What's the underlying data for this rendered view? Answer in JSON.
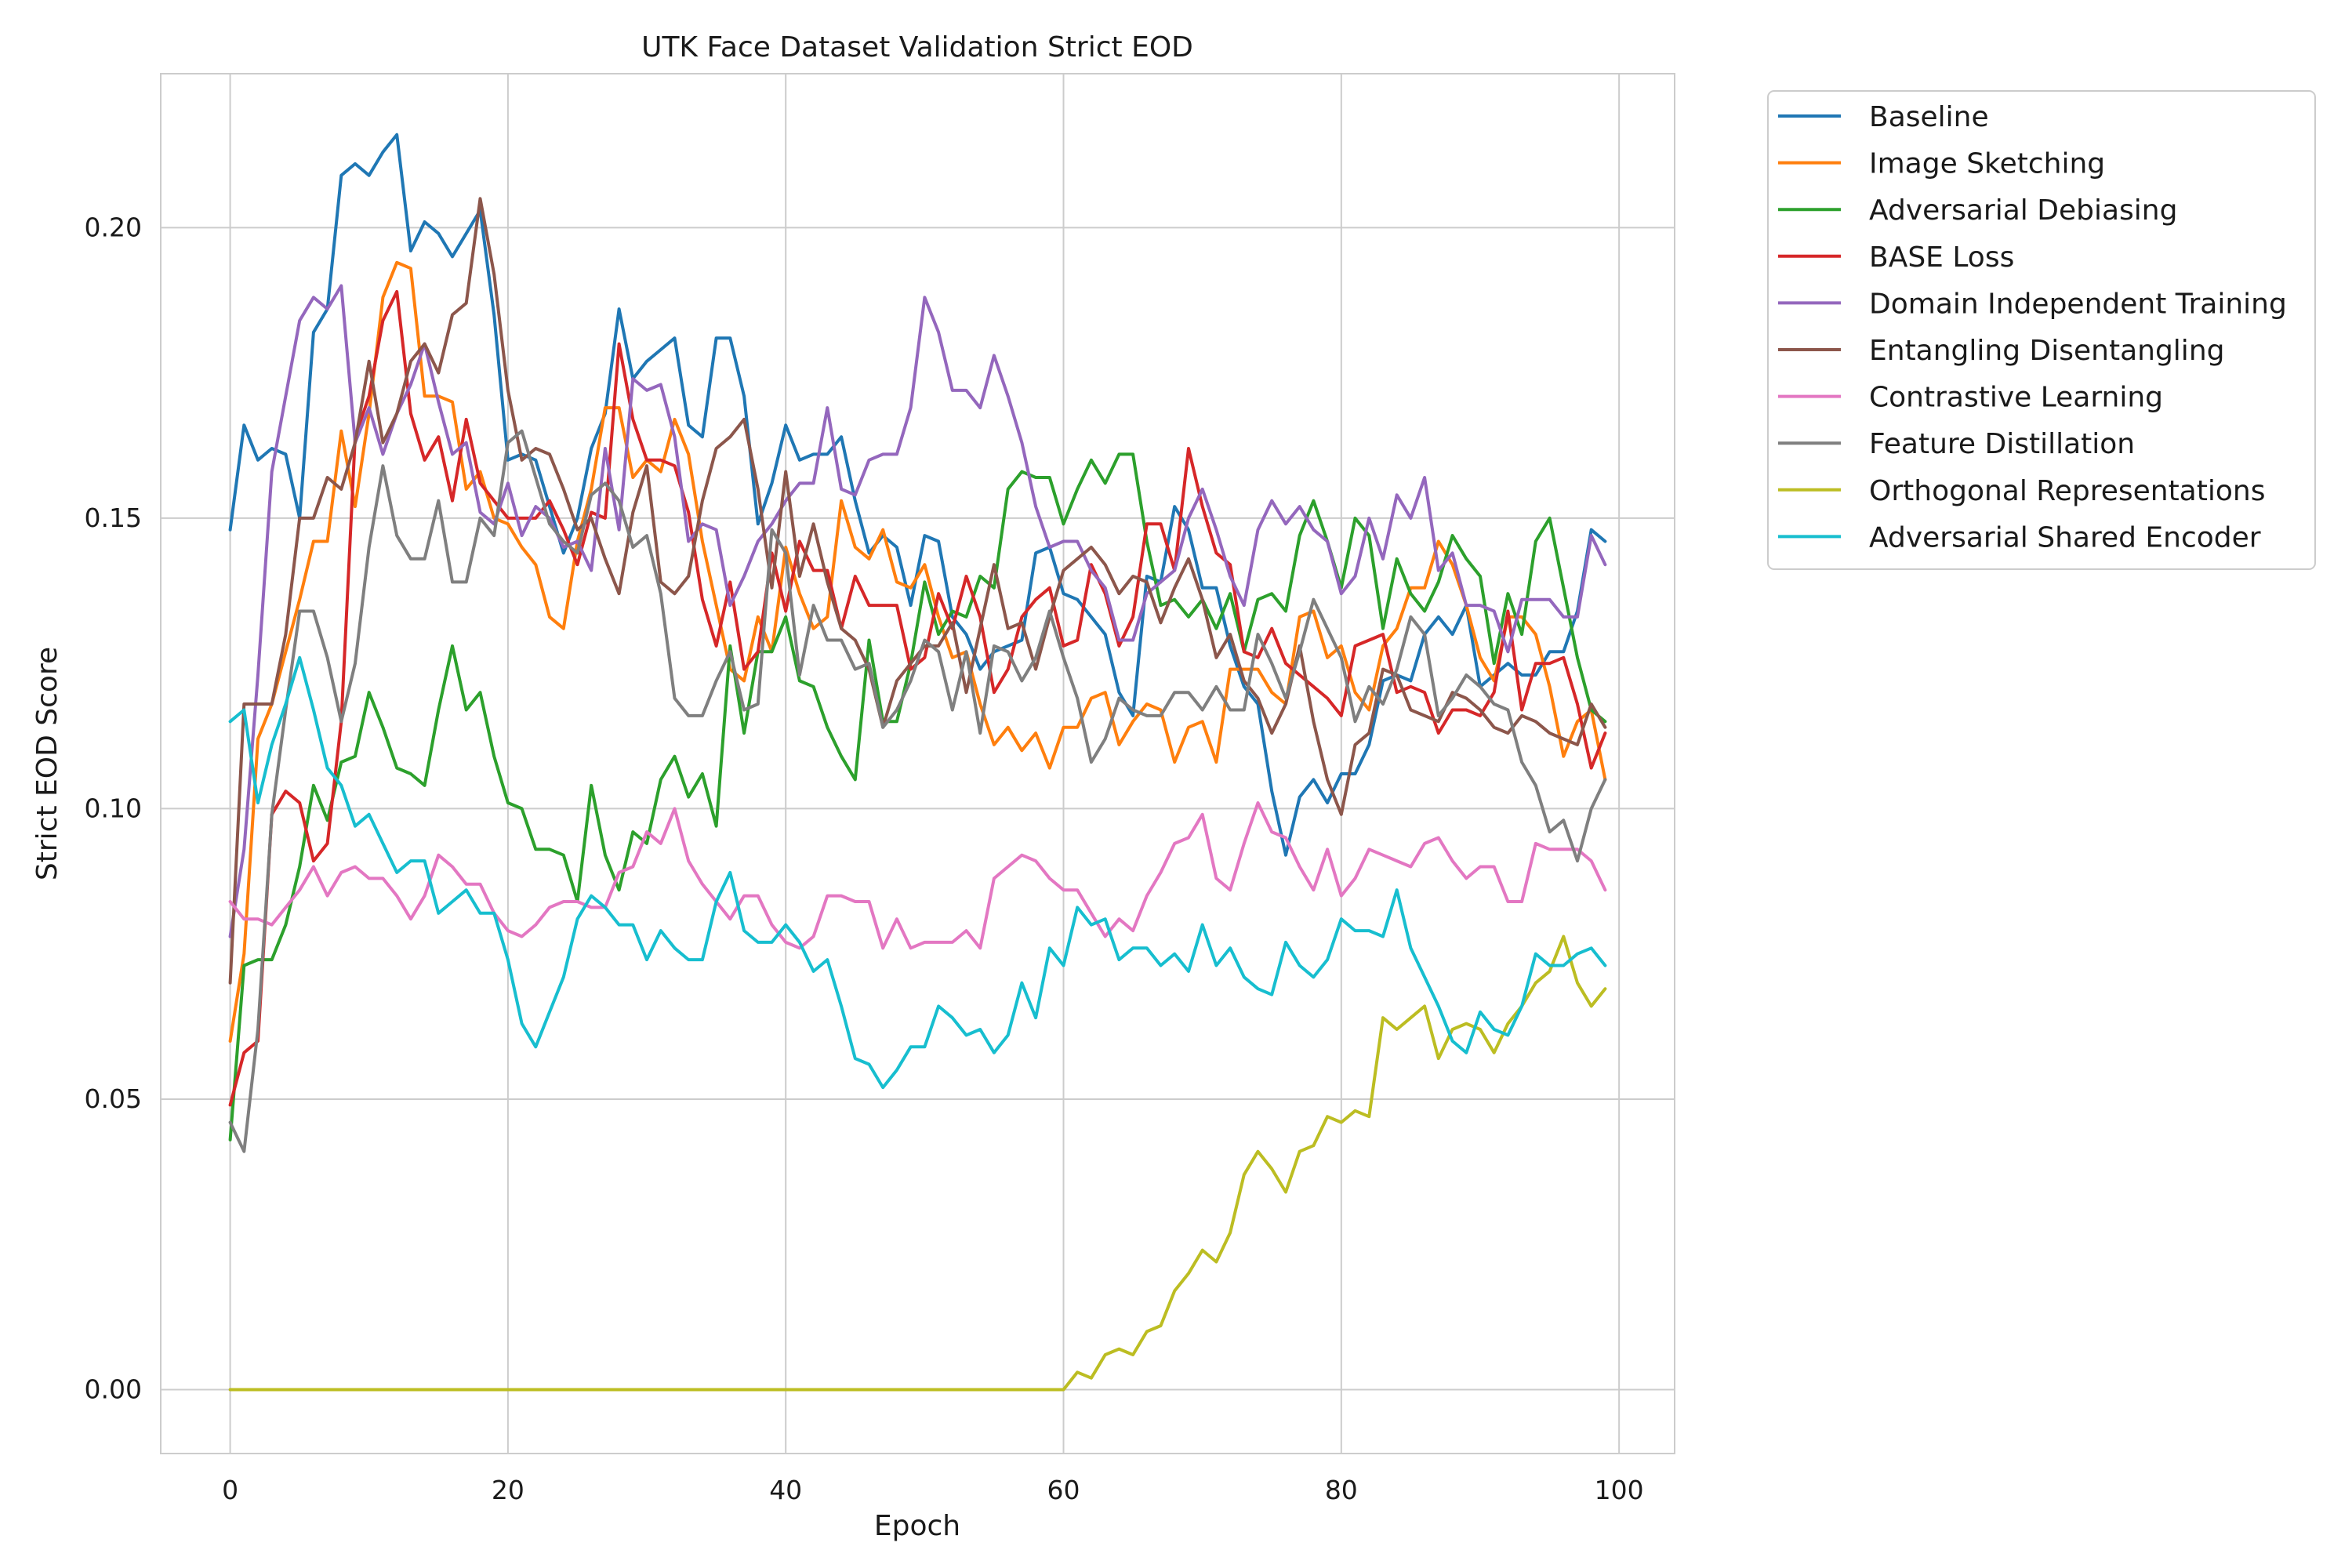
{
  "chart_data": {
    "type": "line",
    "title": "UTK Face Dataset Validation Strict EOD",
    "xlabel": "Epoch",
    "ylabel": "Strict EOD Score",
    "xlim": [
      -5,
      104
    ],
    "ylim": [
      -0.011,
      0.2265
    ],
    "xticks": [
      0,
      20,
      40,
      60,
      80,
      100
    ],
    "yticks": [
      0.0,
      0.05,
      0.1,
      0.15,
      0.2
    ],
    "ytick_labels": [
      "0.00",
      "0.05",
      "0.10",
      "0.15",
      "0.20"
    ],
    "grid": true,
    "legend_position": "outside-top-right",
    "x_start": 0,
    "series": [
      {
        "name": "Baseline",
        "color": "#1f77b4",
        "values": [
          0.148,
          0.166,
          0.16,
          0.162,
          0.161,
          0.15,
          0.182,
          0.186,
          0.209,
          0.211,
          0.209,
          0.213,
          0.216,
          0.196,
          0.201,
          0.199,
          0.195,
          0.199,
          0.203,
          0.185,
          0.16,
          0.161,
          0.16,
          0.152,
          0.144,
          0.15,
          0.162,
          0.168,
          0.186,
          0.174,
          0.177,
          0.179,
          0.181,
          0.166,
          0.164,
          0.181,
          0.181,
          0.171,
          0.149,
          0.156,
          0.166,
          0.16,
          0.161,
          0.161,
          0.164,
          0.153,
          0.144,
          0.147,
          0.145,
          0.135,
          0.147,
          0.146,
          0.133,
          0.13,
          0.124,
          0.127,
          0.128,
          0.129,
          0.144,
          0.145,
          0.137,
          0.136,
          0.133,
          0.13,
          0.12,
          0.116,
          0.14,
          0.139,
          0.152,
          0.148,
          0.138,
          0.138,
          0.128,
          0.121,
          0.118,
          0.103,
          0.092,
          0.102,
          0.105,
          0.101,
          0.106,
          0.106,
          0.111,
          0.122,
          0.123,
          0.122,
          0.13,
          0.133,
          0.13,
          0.135,
          0.121,
          0.123,
          0.125,
          0.123,
          0.123,
          0.127,
          0.127,
          0.134,
          0.148,
          0.146
        ]
      },
      {
        "name": "Image Sketching",
        "color": "#ff7f0e",
        "values": [
          0.06,
          0.075,
          0.112,
          0.118,
          0.127,
          0.136,
          0.146,
          0.146,
          0.165,
          0.152,
          0.168,
          0.188,
          0.194,
          0.193,
          0.171,
          0.171,
          0.17,
          0.155,
          0.158,
          0.15,
          0.149,
          0.145,
          0.142,
          0.133,
          0.131,
          0.146,
          0.155,
          0.169,
          0.169,
          0.157,
          0.16,
          0.158,
          0.167,
          0.161,
          0.146,
          0.135,
          0.124,
          0.122,
          0.133,
          0.127,
          0.145,
          0.137,
          0.131,
          0.133,
          0.153,
          0.145,
          0.143,
          0.148,
          0.139,
          0.138,
          0.142,
          0.133,
          0.126,
          0.127,
          0.118,
          0.111,
          0.114,
          0.11,
          0.113,
          0.107,
          0.114,
          0.114,
          0.119,
          0.12,
          0.111,
          0.115,
          0.118,
          0.117,
          0.108,
          0.114,
          0.115,
          0.108,
          0.124,
          0.124,
          0.124,
          0.12,
          0.118,
          0.133,
          0.134,
          0.126,
          0.128,
          0.12,
          0.117,
          0.128,
          0.131,
          0.138,
          0.138,
          0.146,
          0.142,
          0.135,
          0.126,
          0.122,
          0.133,
          0.133,
          0.13,
          0.121,
          0.109,
          0.115,
          0.117,
          0.105
        ]
      },
      {
        "name": "Adversarial Debiasing",
        "color": "#2ca02c",
        "values": [
          0.043,
          0.073,
          0.074,
          0.074,
          0.08,
          0.09,
          0.104,
          0.098,
          0.108,
          0.109,
          0.12,
          0.114,
          0.107,
          0.106,
          0.104,
          0.117,
          0.128,
          0.117,
          0.12,
          0.109,
          0.101,
          0.1,
          0.093,
          0.093,
          0.092,
          0.084,
          0.104,
          0.092,
          0.086,
          0.096,
          0.094,
          0.105,
          0.109,
          0.102,
          0.106,
          0.097,
          0.128,
          0.113,
          0.127,
          0.127,
          0.133,
          0.122,
          0.121,
          0.114,
          0.109,
          0.105,
          0.129,
          0.115,
          0.115,
          0.125,
          0.139,
          0.13,
          0.134,
          0.133,
          0.14,
          0.138,
          0.155,
          0.158,
          0.157,
          0.157,
          0.149,
          0.155,
          0.16,
          0.156,
          0.161,
          0.161,
          0.146,
          0.135,
          0.136,
          0.133,
          0.136,
          0.131,
          0.137,
          0.127,
          0.136,
          0.137,
          0.134,
          0.147,
          0.153,
          0.146,
          0.138,
          0.15,
          0.147,
          0.131,
          0.143,
          0.137,
          0.134,
          0.139,
          0.147,
          0.143,
          0.14,
          0.125,
          0.137,
          0.13,
          0.146,
          0.15,
          0.138,
          0.126,
          0.117,
          0.115
        ]
      },
      {
        "name": "BASE Loss",
        "color": "#d62728",
        "values": [
          0.049,
          0.058,
          0.06,
          0.099,
          0.103,
          0.101,
          0.091,
          0.094,
          0.115,
          0.164,
          0.171,
          0.184,
          0.189,
          0.168,
          0.16,
          0.164,
          0.153,
          0.167,
          0.156,
          0.153,
          0.15,
          0.15,
          0.15,
          0.153,
          0.148,
          0.142,
          0.151,
          0.15,
          0.18,
          0.167,
          0.16,
          0.16,
          0.159,
          0.151,
          0.136,
          0.128,
          0.139,
          0.124,
          0.127,
          0.144,
          0.134,
          0.146,
          0.141,
          0.141,
          0.131,
          0.14,
          0.135,
          0.135,
          0.135,
          0.124,
          0.126,
          0.137,
          0.131,
          0.14,
          0.133,
          0.12,
          0.124,
          0.133,
          0.136,
          0.138,
          0.128,
          0.129,
          0.142,
          0.137,
          0.128,
          0.133,
          0.149,
          0.149,
          0.141,
          0.162,
          0.152,
          0.144,
          0.142,
          0.127,
          0.126,
          0.131,
          0.125,
          0.123,
          0.121,
          0.119,
          0.116,
          0.128,
          0.129,
          0.13,
          0.12,
          0.121,
          0.12,
          0.113,
          0.117,
          0.117,
          0.116,
          0.12,
          0.134,
          0.117,
          0.125,
          0.125,
          0.126,
          0.118,
          0.107,
          0.113
        ]
      },
      {
        "name": "Domain Independent Training",
        "color": "#9467bd",
        "values": [
          0.078,
          0.093,
          0.123,
          0.158,
          0.171,
          0.184,
          0.188,
          0.186,
          0.19,
          0.163,
          0.169,
          0.161,
          0.168,
          0.173,
          0.18,
          0.17,
          0.161,
          0.163,
          0.151,
          0.149,
          0.156,
          0.147,
          0.152,
          0.15,
          0.145,
          0.146,
          0.141,
          0.162,
          0.148,
          0.174,
          0.172,
          0.173,
          0.164,
          0.146,
          0.149,
          0.148,
          0.135,
          0.14,
          0.146,
          0.149,
          0.153,
          0.156,
          0.156,
          0.169,
          0.155,
          0.154,
          0.16,
          0.161,
          0.161,
          0.169,
          0.188,
          0.182,
          0.172,
          0.172,
          0.169,
          0.178,
          0.171,
          0.163,
          0.152,
          0.145,
          0.146,
          0.146,
          0.141,
          0.138,
          0.129,
          0.129,
          0.137,
          0.139,
          0.141,
          0.15,
          0.155,
          0.148,
          0.14,
          0.135,
          0.148,
          0.153,
          0.149,
          0.152,
          0.148,
          0.146,
          0.137,
          0.14,
          0.15,
          0.143,
          0.154,
          0.15,
          0.157,
          0.141,
          0.144,
          0.135,
          0.135,
          0.134,
          0.127,
          0.136,
          0.136,
          0.136,
          0.133,
          0.133,
          0.147,
          0.142
        ]
      },
      {
        "name": "Entangling Disentangling",
        "color": "#8c564b",
        "values": [
          0.07,
          0.118,
          0.118,
          0.118,
          0.13,
          0.15,
          0.15,
          0.157,
          0.155,
          0.163,
          0.177,
          0.163,
          0.168,
          0.177,
          0.18,
          0.175,
          0.185,
          0.187,
          0.205,
          0.192,
          0.172,
          0.16,
          0.162,
          0.161,
          0.155,
          0.148,
          0.15,
          0.143,
          0.137,
          0.151,
          0.159,
          0.139,
          0.137,
          0.14,
          0.153,
          0.162,
          0.164,
          0.167,
          0.155,
          0.138,
          0.158,
          0.14,
          0.149,
          0.139,
          0.131,
          0.129,
          0.124,
          0.114,
          0.122,
          0.125,
          0.128,
          0.128,
          0.132,
          0.12,
          0.131,
          0.142,
          0.131,
          0.132,
          0.124,
          0.133,
          0.141,
          0.143,
          0.145,
          0.142,
          0.137,
          0.14,
          0.139,
          0.132,
          0.138,
          0.143,
          0.136,
          0.126,
          0.13,
          0.122,
          0.119,
          0.113,
          0.118,
          0.128,
          0.115,
          0.105,
          0.099,
          0.111,
          0.113,
          0.124,
          0.123,
          0.117,
          0.116,
          0.115,
          0.12,
          0.119,
          0.117,
          0.114,
          0.113,
          0.116,
          0.115,
          0.113,
          0.112,
          0.111,
          0.118,
          0.114
        ]
      },
      {
        "name": "Contrastive Learning",
        "color": "#e377c2",
        "values": [
          0.084,
          0.081,
          0.081,
          0.08,
          0.083,
          0.086,
          0.09,
          0.085,
          0.089,
          0.09,
          0.088,
          0.088,
          0.085,
          0.081,
          0.085,
          0.092,
          0.09,
          0.087,
          0.087,
          0.082,
          0.079,
          0.078,
          0.08,
          0.083,
          0.084,
          0.084,
          0.083,
          0.083,
          0.089,
          0.09,
          0.096,
          0.094,
          0.1,
          0.091,
          0.087,
          0.084,
          0.081,
          0.085,
          0.085,
          0.08,
          0.077,
          0.076,
          0.078,
          0.085,
          0.085,
          0.084,
          0.084,
          0.076,
          0.081,
          0.076,
          0.077,
          0.077,
          0.077,
          0.079,
          0.076,
          0.088,
          0.09,
          0.092,
          0.091,
          0.088,
          0.086,
          0.086,
          0.082,
          0.078,
          0.081,
          0.079,
          0.085,
          0.089,
          0.094,
          0.095,
          0.099,
          0.088,
          0.086,
          0.094,
          0.101,
          0.096,
          0.095,
          0.09,
          0.086,
          0.093,
          0.085,
          0.088,
          0.093,
          0.092,
          0.091,
          0.09,
          0.094,
          0.095,
          0.091,
          0.088,
          0.09,
          0.09,
          0.084,
          0.084,
          0.094,
          0.093,
          0.093,
          0.093,
          0.091,
          0.086
        ]
      },
      {
        "name": "Feature Distillation",
        "color": "#7f7f7f",
        "values": [
          0.046,
          0.041,
          0.062,
          0.099,
          0.117,
          0.134,
          0.134,
          0.126,
          0.115,
          0.125,
          0.145,
          0.159,
          0.147,
          0.143,
          0.143,
          0.153,
          0.139,
          0.139,
          0.15,
          0.147,
          0.163,
          0.165,
          0.157,
          0.149,
          0.146,
          0.144,
          0.154,
          0.156,
          0.153,
          0.145,
          0.147,
          0.137,
          0.119,
          0.116,
          0.116,
          0.122,
          0.127,
          0.117,
          0.118,
          0.148,
          0.144,
          0.123,
          0.135,
          0.129,
          0.129,
          0.124,
          0.125,
          0.114,
          0.117,
          0.122,
          0.129,
          0.127,
          0.117,
          0.127,
          0.113,
          0.128,
          0.127,
          0.122,
          0.126,
          0.134,
          0.126,
          0.119,
          0.108,
          0.112,
          0.119,
          0.117,
          0.116,
          0.116,
          0.12,
          0.12,
          0.117,
          0.121,
          0.117,
          0.117,
          0.13,
          0.125,
          0.119,
          0.127,
          0.136,
          0.131,
          0.126,
          0.115,
          0.121,
          0.118,
          0.124,
          0.133,
          0.13,
          0.116,
          0.119,
          0.123,
          0.121,
          0.118,
          0.117,
          0.108,
          0.104,
          0.096,
          0.098,
          0.091,
          0.1,
          0.105
        ]
      },
      {
        "name": "Orthogonal Representations",
        "color": "#bcbd22",
        "values": [
          0,
          0,
          0,
          0,
          0,
          0,
          0,
          0,
          0,
          0,
          0,
          0,
          0,
          0,
          0,
          0,
          0,
          0,
          0,
          0,
          0,
          0,
          0,
          0,
          0,
          0,
          0,
          0,
          0,
          0,
          0,
          0,
          0,
          0,
          0,
          0,
          0,
          0,
          0,
          0,
          0,
          0,
          0,
          0,
          0,
          0,
          0,
          0,
          0,
          0,
          0,
          0,
          0,
          0,
          0,
          0,
          0,
          0,
          0,
          0,
          0,
          0.003,
          0.002,
          0.006,
          0.007,
          0.006,
          0.01,
          0.011,
          0.017,
          0.02,
          0.024,
          0.022,
          0.027,
          0.037,
          0.041,
          0.038,
          0.034,
          0.041,
          0.042,
          0.047,
          0.046,
          0.048,
          0.047,
          0.064,
          0.062,
          0.064,
          0.066,
          0.057,
          0.062,
          0.063,
          0.062,
          0.058,
          0.063,
          0.066,
          0.07,
          0.072,
          0.078,
          0.07,
          0.066,
          0.069
        ]
      },
      {
        "name": "Adversarial Shared Encoder",
        "color": "#17becf",
        "values": [
          0.115,
          0.117,
          0.101,
          0.111,
          0.118,
          0.126,
          0.117,
          0.107,
          0.104,
          0.097,
          0.099,
          0.094,
          0.089,
          0.091,
          0.091,
          0.082,
          0.084,
          0.086,
          0.082,
          0.082,
          0.074,
          0.063,
          0.059,
          0.065,
          0.071,
          0.081,
          0.085,
          0.083,
          0.08,
          0.08,
          0.074,
          0.079,
          0.076,
          0.074,
          0.074,
          0.084,
          0.089,
          0.079,
          0.077,
          0.077,
          0.08,
          0.077,
          0.072,
          0.074,
          0.066,
          0.057,
          0.056,
          0.052,
          0.055,
          0.059,
          0.059,
          0.066,
          0.064,
          0.061,
          0.062,
          0.058,
          0.061,
          0.07,
          0.064,
          0.076,
          0.073,
          0.083,
          0.08,
          0.081,
          0.074,
          0.076,
          0.076,
          0.073,
          0.075,
          0.072,
          0.08,
          0.073,
          0.076,
          0.071,
          0.069,
          0.068,
          0.077,
          0.073,
          0.071,
          0.074,
          0.081,
          0.079,
          0.079,
          0.078,
          0.086,
          0.076,
          0.071,
          0.066,
          0.06,
          0.058,
          0.065,
          0.062,
          0.061,
          0.066,
          0.075,
          0.073,
          0.073,
          0.075,
          0.076,
          0.073
        ]
      }
    ]
  }
}
